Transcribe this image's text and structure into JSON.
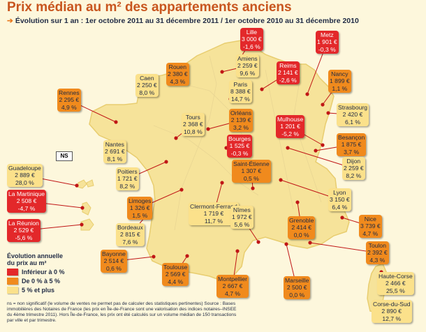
{
  "title": "Prix médian au m² des appartements anciens",
  "subtitle": "Évolution sur 1 an : 1er octobre 2011 au 31 décembre 2011 / 1er octobre 2010 au 31 décembre 2010",
  "ns_label": "NS",
  "legend": {
    "title_1": "Évolution annuelle",
    "title_2": "du prix au m²",
    "items": [
      {
        "label": "Inférieur à 0 %",
        "color": "#e3282a"
      },
      {
        "label": "De 0 % à 5 %",
        "color": "#f08a1d"
      },
      {
        "label": "5 % et plus",
        "color": "#fbe18b"
      }
    ]
  },
  "footnote": "ns = non significatif (le volume de ventes ne permet pas de calculer des statistiques pertinentes) Source : Bases immobilières des Notaires de France (les prix en Île-de-France sont une valorisation des indices notaires–INSEE du 4ème trimestre 2011). Hors Île-de-France, les prix ont été calculés sur un volume médian de 150 transactions par ville et par trimestre.",
  "colors": {
    "negative": "#e3282a",
    "low": "#f08a1d",
    "high": "#fbe18b",
    "land": "#f6e39a",
    "title": "#c8551e"
  },
  "cities": [
    {
      "name": "Lille",
      "price": "3 000 €",
      "change": "-1,6 %",
      "cat": "red"
    },
    {
      "name": "Amiens",
      "price": "2 259 €",
      "change": "9,6 %",
      "cat": "yellow"
    },
    {
      "name": "Metz",
      "price": "1 901 €",
      "change": "-0,3 %",
      "cat": "red"
    },
    {
      "name": "Rouen",
      "price": "2 380 €",
      "change": "4,3 %",
      "cat": "orange"
    },
    {
      "name": "Caen",
      "price": "2 250 €",
      "change": "8,0 %",
      "cat": "yellow"
    },
    {
      "name": "Reims",
      "price": "2 141 €",
      "change": "-2,6 %",
      "cat": "red"
    },
    {
      "name": "Nancy",
      "price": "1 899 €",
      "change": "1,1 %",
      "cat": "orange"
    },
    {
      "name": "Rennes",
      "price": "2 295 €",
      "change": "4,9 %",
      "cat": "orange"
    },
    {
      "name": "Paris",
      "price": "8 388 €",
      "change": "14,7 %",
      "cat": "yellow"
    },
    {
      "name": "Strasbourg",
      "price": "2 420 €",
      "change": "6,1 %",
      "cat": "yellow"
    },
    {
      "name": "Orléans",
      "price": "2 139 €",
      "change": "3,2 %",
      "cat": "orange"
    },
    {
      "name": "Tours",
      "price": "2 368 €",
      "change": "10,8 %",
      "cat": "yellow"
    },
    {
      "name": "Mulhouse",
      "price": "1 201 €",
      "change": "-5,2 %",
      "cat": "red"
    },
    {
      "name": "Nantes",
      "price": "2 691 €",
      "change": "8,1 %",
      "cat": "yellow"
    },
    {
      "name": "Besançon",
      "price": "1 875 €",
      "change": "3,7 %",
      "cat": "orange"
    },
    {
      "name": "Bourges",
      "price": "1 525 €",
      "change": "-0,3 %",
      "cat": "red"
    },
    {
      "name": "Saint-Étienne",
      "price": "1 307 €",
      "change": "0,5 %",
      "cat": "orange"
    },
    {
      "name": "Dijon",
      "price": "2 259 €",
      "change": "8,2 %",
      "cat": "yellow"
    },
    {
      "name": "Guadeloupe",
      "price": "2 889 €",
      "change": "28,0 %",
      "cat": "yellow"
    },
    {
      "name": "Poitiers",
      "price": "1 721 €",
      "change": "8,2 %",
      "cat": "yellow"
    },
    {
      "name": "La Martinique",
      "price": "2 508 €",
      "change": "-4,7 %",
      "cat": "red"
    },
    {
      "name": "Lyon",
      "price": "3 150 €",
      "change": "6,4 %",
      "cat": "yellow"
    },
    {
      "name": "Limoges",
      "price": "1 326 €",
      "change": "1,5 %",
      "cat": "orange"
    },
    {
      "name": "Clermont-Ferrand",
      "price": "1 719 €",
      "change": "11,7 %",
      "cat": "yellow"
    },
    {
      "name": "Nîmes",
      "price": "1 972 €",
      "change": "5,6 %",
      "cat": "yellow"
    },
    {
      "name": "La Réunion",
      "price": "2 529 €",
      "change": "-5,6 %",
      "cat": "red"
    },
    {
      "name": "Grenoble",
      "price": "2 414 €",
      "change": "0,0 %",
      "cat": "orange"
    },
    {
      "name": "Nice",
      "price": "3 739 €",
      "change": "4,7 %",
      "cat": "orange"
    },
    {
      "name": "Bordeaux",
      "price": "2 815 €",
      "change": "7,6 %",
      "cat": "yellow"
    },
    {
      "name": "Bayonne",
      "price": "2 514 €",
      "change": "0,6 %",
      "cat": "orange"
    },
    {
      "name": "Toulon",
      "price": "2 392 €",
      "change": "4,3 %",
      "cat": "orange"
    },
    {
      "name": "Toulouse",
      "price": "2 569 €",
      "change": "4,4 %",
      "cat": "orange"
    },
    {
      "name": "Haute-Corse",
      "price": "2 466 €",
      "change": "25,5 %",
      "cat": "yellow"
    },
    {
      "name": "Montpellier",
      "price": "2 667 €",
      "change": "4,7 %",
      "cat": "orange"
    },
    {
      "name": "Marseille",
      "price": "2 500 €",
      "change": "0,0 %",
      "cat": "orange"
    },
    {
      "name": "Corse-du-Sud",
      "price": "2 890 €",
      "change": "12,7 %",
      "cat": "yellow"
    }
  ]
}
